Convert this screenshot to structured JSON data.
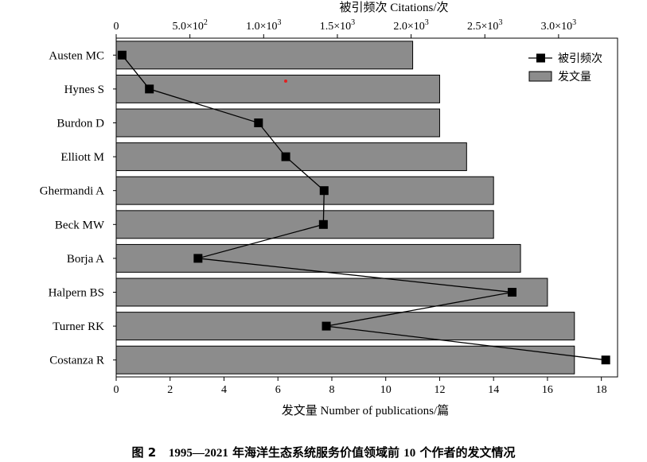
{
  "chart_data": {
    "type": "bar",
    "orientation": "horizontal",
    "categories": [
      "Austen MC",
      "Hynes S",
      "Burdon D",
      "Elliott M",
      "Ghermandi A",
      "Beck MW",
      "Borja A",
      "Halpern BS",
      "Turner RK",
      "Costanza R"
    ],
    "series": [
      {
        "name": "发文量",
        "kind": "bar",
        "axis": "bottom",
        "values": [
          11,
          12,
          12,
          13,
          14,
          14,
          15,
          16,
          17,
          17
        ],
        "color": "#8c8c8c"
      },
      {
        "name": "被引频次",
        "kind": "line-marker",
        "axis": "top",
        "values": [
          40,
          225,
          965,
          1150,
          1410,
          1405,
          555,
          2685,
          1425,
          3320
        ],
        "color": "#000000"
      }
    ],
    "xlabel_bottom": "发文量 Number of publications/篇",
    "xlabel_top": "被引频次 Citations/次",
    "xlim_bottom": [
      0,
      18.6
    ],
    "xlim_top": [
      0,
      3400
    ],
    "ticks_bottom": [
      "0",
      "2",
      "4",
      "6",
      "8",
      "10",
      "12",
      "14",
      "16",
      "18"
    ],
    "ticks_top": [
      {
        "mant": "0",
        "exp": ""
      },
      {
        "mant": "5.0×10",
        "exp": "2"
      },
      {
        "mant": "1.0×10",
        "exp": "3"
      },
      {
        "mant": "1.5×10",
        "exp": "3"
      },
      {
        "mant": "2.0×10",
        "exp": "3"
      },
      {
        "mant": "2.5×10",
        "exp": "3"
      },
      {
        "mant": "3.0×10",
        "exp": "3"
      }
    ],
    "legend": "top-right",
    "grid": false
  },
  "caption": {
    "label": "图 2",
    "years": "1995—2021",
    "text_a": " 年海洋生态系统服务价值领域前 ",
    "count": "10",
    "text_b": " 个作者的发文情况"
  }
}
